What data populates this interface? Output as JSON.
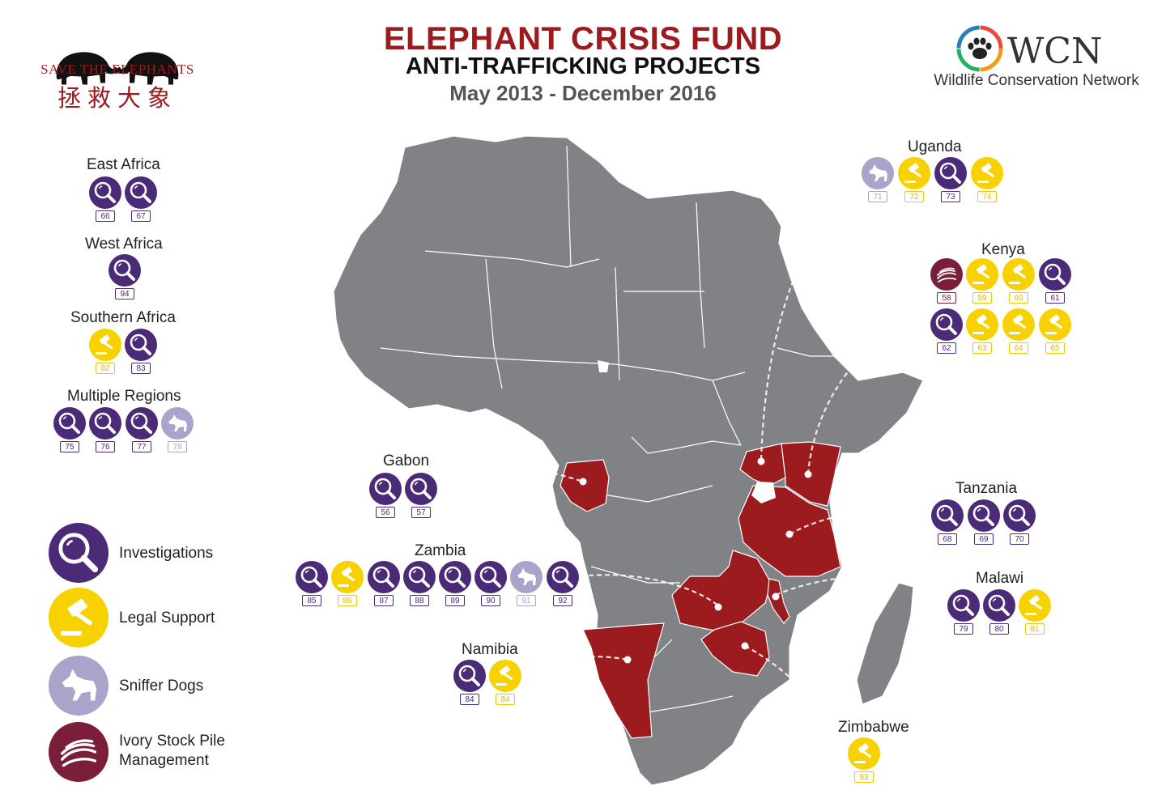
{
  "header": {
    "title": "ELEPHANT CRISIS FUND",
    "subtitle": "ANTI-TRAFFICKING PROJECTS",
    "date_range": "May 2013 - December 2016"
  },
  "logos": {
    "save_the_elephants": {
      "name": "SAVE THE ELEPHANTS",
      "chinese": "拯救大象"
    },
    "wcn": {
      "abbr": "WCN",
      "name": "Wildlife Conservation Network"
    }
  },
  "colors": {
    "investigations": "#4b2a78",
    "legal_support": "#f7d200",
    "sniffer_dogs": "#a9a4c9",
    "ivory_stock": "#7b1e3a",
    "highlight_country": "#9b1b1f",
    "map_land": "#808285"
  },
  "legend": [
    {
      "type": "investigations",
      "icon": "magnifier-icon",
      "label": "Investigations"
    },
    {
      "type": "legal_support",
      "icon": "gavel-icon",
      "label": "Legal Support"
    },
    {
      "type": "sniffer_dogs",
      "icon": "dog-icon",
      "label": "Sniffer Dogs"
    },
    {
      "type": "ivory_stock",
      "icon": "tusks-icon",
      "label": "Ivory Stock Pile",
      "label2": "Management"
    }
  ],
  "regions": [
    {
      "name": "East Africa",
      "projects": [
        {
          "id": "66",
          "type": "investigations"
        },
        {
          "id": "67",
          "type": "investigations"
        }
      ]
    },
    {
      "name": "West Africa",
      "projects": [
        {
          "id": "94",
          "type": "investigations"
        }
      ]
    },
    {
      "name": "Southern Africa",
      "projects": [
        {
          "id": "82",
          "type": "legal_support"
        },
        {
          "id": "83",
          "type": "investigations"
        }
      ]
    },
    {
      "name": "Multiple Regions",
      "projects": [
        {
          "id": "75",
          "type": "investigations"
        },
        {
          "id": "76",
          "type": "investigations"
        },
        {
          "id": "77",
          "type": "investigations"
        },
        {
          "id": "78",
          "type": "sniffer_dogs"
        }
      ]
    }
  ],
  "countries": [
    {
      "name": "Uganda",
      "projects": [
        {
          "id": "71",
          "type": "sniffer_dogs"
        },
        {
          "id": "72",
          "type": "legal_support"
        },
        {
          "id": "73",
          "type": "investigations"
        },
        {
          "id": "74",
          "type": "legal_support"
        }
      ]
    },
    {
      "name": "Kenya",
      "projects": [
        {
          "id": "58",
          "type": "ivory_stock"
        },
        {
          "id": "59",
          "type": "legal_support"
        },
        {
          "id": "60",
          "type": "legal_support"
        },
        {
          "id": "61",
          "type": "investigations"
        },
        {
          "id": "62",
          "type": "investigations"
        },
        {
          "id": "63",
          "type": "legal_support"
        },
        {
          "id": "64",
          "type": "legal_support"
        },
        {
          "id": "65",
          "type": "legal_support"
        }
      ]
    },
    {
      "name": "Gabon",
      "projects": [
        {
          "id": "56",
          "type": "investigations"
        },
        {
          "id": "57",
          "type": "investigations"
        }
      ]
    },
    {
      "name": "Tanzania",
      "projects": [
        {
          "id": "68",
          "type": "investigations"
        },
        {
          "id": "69",
          "type": "investigations"
        },
        {
          "id": "70",
          "type": "investigations"
        }
      ]
    },
    {
      "name": "Zambia",
      "projects": [
        {
          "id": "85",
          "type": "investigations"
        },
        {
          "id": "86",
          "type": "legal_support"
        },
        {
          "id": "87",
          "type": "investigations"
        },
        {
          "id": "88",
          "type": "investigations"
        },
        {
          "id": "89",
          "type": "investigations"
        },
        {
          "id": "90",
          "type": "investigations"
        },
        {
          "id": "91",
          "type": "sniffer_dogs"
        },
        {
          "id": "92",
          "type": "investigations"
        }
      ]
    },
    {
      "name": "Malawi",
      "projects": [
        {
          "id": "79",
          "type": "investigations"
        },
        {
          "id": "80",
          "type": "investigations"
        },
        {
          "id": "81",
          "type": "legal_support"
        }
      ]
    },
    {
      "name": "Namibia",
      "projects": [
        {
          "id": "84",
          "type": "investigations"
        },
        {
          "id": "84",
          "type": "legal_support"
        }
      ]
    },
    {
      "name": "Zimbabwe",
      "projects": [
        {
          "id": "93",
          "type": "legal_support"
        }
      ]
    }
  ]
}
